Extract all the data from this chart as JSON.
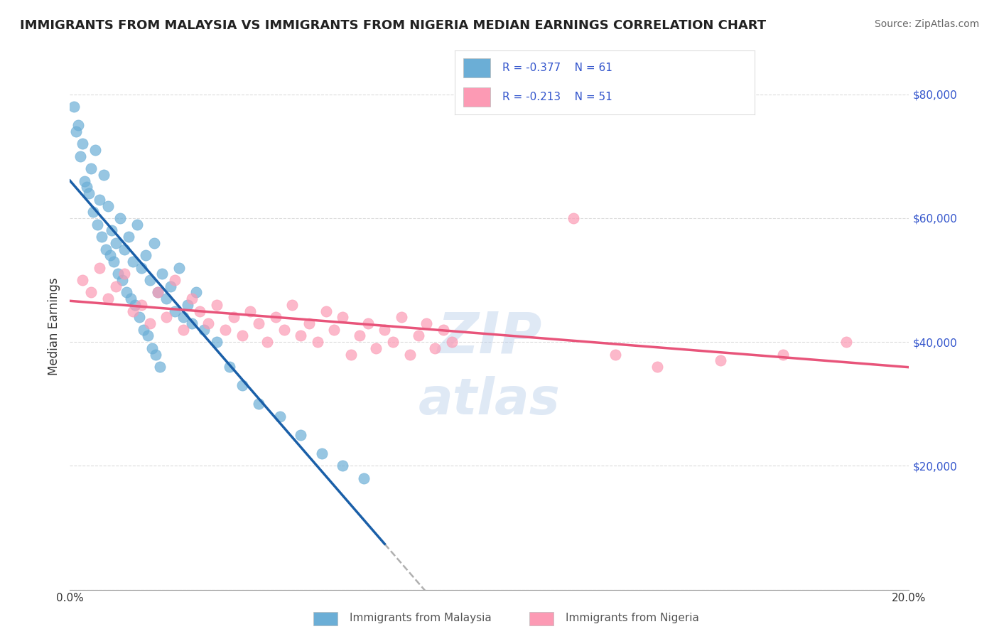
{
  "title": "IMMIGRANTS FROM MALAYSIA VS IMMIGRANTS FROM NIGERIA MEDIAN EARNINGS CORRELATION CHART",
  "source": "Source: ZipAtlas.com",
  "ylabel": "Median Earnings",
  "y_ticks": [
    0,
    20000,
    40000,
    60000,
    80000
  ],
  "y_tick_labels": [
    "",
    "$20,000",
    "$40,000",
    "$60,000",
    "$80,000"
  ],
  "x_min": 0.0,
  "x_max": 20.0,
  "y_min": 0,
  "y_max": 85000,
  "malaysia_R": -0.377,
  "malaysia_N": 61,
  "nigeria_R": -0.213,
  "nigeria_N": 51,
  "malaysia_color": "#6baed6",
  "nigeria_color": "#fc9ab4",
  "malaysia_line_color": "#1a5fa8",
  "nigeria_line_color": "#e8547a",
  "background_color": "#ffffff",
  "grid_color": "#cccccc",
  "watermark_color": "#b0c8e8",
  "malaysia_x": [
    0.2,
    0.3,
    0.4,
    0.5,
    0.6,
    0.7,
    0.8,
    0.9,
    1.0,
    1.1,
    1.2,
    1.3,
    1.4,
    1.5,
    1.6,
    1.7,
    1.8,
    1.9,
    2.0,
    2.1,
    2.2,
    2.3,
    2.4,
    2.5,
    2.6,
    2.7,
    2.8,
    2.9,
    3.0,
    3.2,
    3.5,
    3.8,
    4.1,
    4.5,
    5.0,
    5.5,
    6.0,
    6.5,
    7.0,
    0.1,
    0.15,
    0.25,
    0.35,
    0.45,
    0.55,
    0.65,
    0.75,
    0.85,
    0.95,
    1.05,
    1.15,
    1.25,
    1.35,
    1.45,
    1.55,
    1.65,
    1.75,
    1.85,
    1.95,
    2.05,
    2.15
  ],
  "malaysia_y": [
    75000,
    72000,
    65000,
    68000,
    71000,
    63000,
    67000,
    62000,
    58000,
    56000,
    60000,
    55000,
    57000,
    53000,
    59000,
    52000,
    54000,
    50000,
    56000,
    48000,
    51000,
    47000,
    49000,
    45000,
    52000,
    44000,
    46000,
    43000,
    48000,
    42000,
    40000,
    36000,
    33000,
    30000,
    28000,
    25000,
    22000,
    20000,
    18000,
    78000,
    74000,
    70000,
    66000,
    64000,
    61000,
    59000,
    57000,
    55000,
    54000,
    53000,
    51000,
    50000,
    48000,
    47000,
    46000,
    44000,
    42000,
    41000,
    39000,
    38000,
    36000
  ],
  "nigeria_x": [
    0.3,
    0.5,
    0.7,
    0.9,
    1.1,
    1.3,
    1.5,
    1.7,
    1.9,
    2.1,
    2.3,
    2.5,
    2.7,
    2.9,
    3.1,
    3.3,
    3.5,
    3.7,
    3.9,
    4.1,
    4.3,
    4.5,
    4.7,
    4.9,
    5.1,
    5.3,
    5.5,
    5.7,
    5.9,
    6.1,
    6.3,
    6.5,
    6.7,
    6.9,
    7.1,
    7.3,
    7.5,
    7.7,
    7.9,
    8.1,
    8.3,
    8.5,
    8.7,
    8.9,
    9.1,
    12.0,
    13.0,
    14.0,
    15.5,
    17.0,
    18.5
  ],
  "nigeria_y": [
    50000,
    48000,
    52000,
    47000,
    49000,
    51000,
    45000,
    46000,
    43000,
    48000,
    44000,
    50000,
    42000,
    47000,
    45000,
    43000,
    46000,
    42000,
    44000,
    41000,
    45000,
    43000,
    40000,
    44000,
    42000,
    46000,
    41000,
    43000,
    40000,
    45000,
    42000,
    44000,
    38000,
    41000,
    43000,
    39000,
    42000,
    40000,
    44000,
    38000,
    41000,
    43000,
    39000,
    42000,
    40000,
    60000,
    38000,
    36000,
    37000,
    38000,
    40000
  ]
}
